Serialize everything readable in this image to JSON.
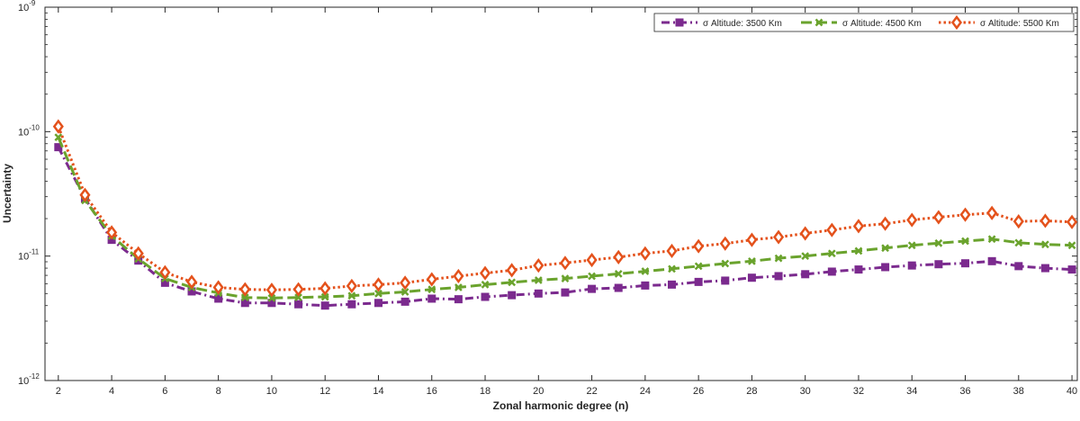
{
  "chart_data": {
    "type": "line",
    "title": "",
    "xlabel": "Zonal harmonic degree (n)",
    "ylabel": "Uncertainty",
    "yscale": "log",
    "xlim": [
      1.5,
      40.2
    ],
    "ylim": [
      1e-12,
      1e-09
    ],
    "x_ticks": [
      2,
      4,
      6,
      8,
      10,
      12,
      14,
      16,
      18,
      20,
      22,
      24,
      26,
      28,
      30,
      32,
      34,
      36,
      38,
      40
    ],
    "x_tick_labels": [
      "2",
      "4",
      "6",
      "8",
      "10",
      "12",
      "14",
      "16",
      "18",
      "20",
      "22",
      "24",
      "26",
      "28",
      "30",
      "32",
      "34",
      "36",
      "38",
      "40"
    ],
    "y_ticks": [
      1e-12,
      1e-11,
      1e-10,
      1e-09
    ],
    "y_tick_labels": [
      {
        "base": "10",
        "exp": "-12"
      },
      {
        "base": "10",
        "exp": "-11"
      },
      {
        "base": "10",
        "exp": "-10"
      },
      {
        "base": "10",
        "exp": "-9"
      }
    ],
    "grid": false,
    "legend_position": "top-right",
    "x": [
      2,
      3,
      4,
      5,
      6,
      7,
      8,
      9,
      10,
      11,
      12,
      13,
      14,
      15,
      16,
      17,
      18,
      19,
      20,
      21,
      22,
      23,
      24,
      25,
      26,
      27,
      28,
      29,
      30,
      31,
      32,
      33,
      34,
      35,
      36,
      37,
      38,
      39,
      40
    ],
    "series": [
      {
        "name": "σ Altitude: 3500 Km",
        "color": "#7b2a8e",
        "dash": "9,4,2,4",
        "marker": "square",
        "values": [
          7.5e-11,
          2.9e-11,
          1.35e-11,
          9.2e-12,
          6.1e-12,
          5.2e-12,
          4.55e-12,
          4.2e-12,
          4.2e-12,
          4.1e-12,
          4e-12,
          4.1e-12,
          4.2e-12,
          4.3e-12,
          4.55e-12,
          4.5e-12,
          4.7e-12,
          4.85e-12,
          5e-12,
          5.1e-12,
          5.45e-12,
          5.55e-12,
          5.8e-12,
          5.9e-12,
          6.2e-12,
          6.35e-12,
          6.7e-12,
          6.9e-12,
          7.15e-12,
          7.5e-12,
          7.8e-12,
          8.15e-12,
          8.4e-12,
          8.6e-12,
          8.75e-12,
          9.1e-12,
          8.3e-12,
          8e-12,
          7.8e-12
        ]
      },
      {
        "name": "σ Altitude: 4500 Km",
        "color": "#6aa32d",
        "dash": "12,5",
        "marker": "x",
        "values": [
          9e-11,
          2.8e-11,
          1.45e-11,
          9.5e-12,
          6.6e-12,
          5.6e-12,
          5.05e-12,
          4.65e-12,
          4.6e-12,
          4.65e-12,
          4.7e-12,
          4.8e-12,
          5e-12,
          5.15e-12,
          5.4e-12,
          5.6e-12,
          5.9e-12,
          6.15e-12,
          6.4e-12,
          6.6e-12,
          6.9e-12,
          7.2e-12,
          7.55e-12,
          7.9e-12,
          8.3e-12,
          8.7e-12,
          9.1e-12,
          9.6e-12,
          1e-11,
          1.05e-11,
          1.1e-11,
          1.16e-11,
          1.22e-11,
          1.27e-11,
          1.32e-11,
          1.37e-11,
          1.28e-11,
          1.24e-11,
          1.22e-11
        ]
      },
      {
        "name": "σ Altitude: 5500 Km",
        "color": "#e4521c",
        "dash": "2.5,3",
        "marker": "diamond",
        "values": [
          1.1e-10,
          3.1e-11,
          1.55e-11,
          1.05e-11,
          7.4e-12,
          6.2e-12,
          5.6e-12,
          5.4e-12,
          5.35e-12,
          5.4e-12,
          5.5e-12,
          5.75e-12,
          5.9e-12,
          6.1e-12,
          6.5e-12,
          6.9e-12,
          7.3e-12,
          7.7e-12,
          8.4e-12,
          8.8e-12,
          9.3e-12,
          9.8e-12,
          1.05e-11,
          1.1e-11,
          1.2e-11,
          1.26e-11,
          1.35e-11,
          1.42e-11,
          1.52e-11,
          1.62e-11,
          1.74e-11,
          1.82e-11,
          1.95e-11,
          2.05e-11,
          2.15e-11,
          2.22e-11,
          1.9e-11,
          1.92e-11,
          1.88e-11
        ]
      }
    ]
  }
}
